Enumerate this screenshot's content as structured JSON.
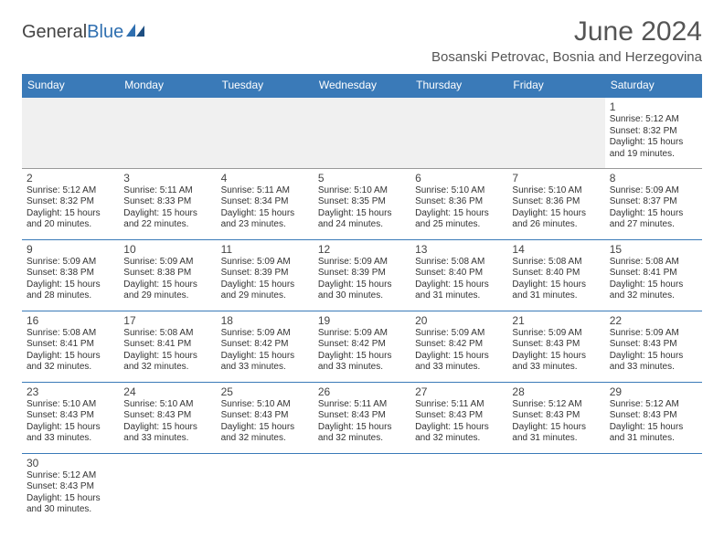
{
  "logo": {
    "dark": "General",
    "blue": "Blue"
  },
  "title": "June 2024",
  "location": "Bosanski Petrovac, Bosnia and Herzegovina",
  "colors": {
    "header_bg": "#3a7ab8",
    "header_text": "#ffffff",
    "row_border": "#3a7ab8",
    "blank_bg": "#f0f0f0",
    "text": "#333333",
    "logo_blue": "#2f6fb0"
  },
  "days": [
    "Sunday",
    "Monday",
    "Tuesday",
    "Wednesday",
    "Thursday",
    "Friday",
    "Saturday"
  ],
  "weeks": [
    [
      null,
      null,
      null,
      null,
      null,
      null,
      {
        "n": "1",
        "sr": "5:12 AM",
        "ss": "8:32 PM",
        "dl": "15 hours and 19 minutes."
      }
    ],
    [
      {
        "n": "2",
        "sr": "5:12 AM",
        "ss": "8:32 PM",
        "dl": "15 hours and 20 minutes."
      },
      {
        "n": "3",
        "sr": "5:11 AM",
        "ss": "8:33 PM",
        "dl": "15 hours and 22 minutes."
      },
      {
        "n": "4",
        "sr": "5:11 AM",
        "ss": "8:34 PM",
        "dl": "15 hours and 23 minutes."
      },
      {
        "n": "5",
        "sr": "5:10 AM",
        "ss": "8:35 PM",
        "dl": "15 hours and 24 minutes."
      },
      {
        "n": "6",
        "sr": "5:10 AM",
        "ss": "8:36 PM",
        "dl": "15 hours and 25 minutes."
      },
      {
        "n": "7",
        "sr": "5:10 AM",
        "ss": "8:36 PM",
        "dl": "15 hours and 26 minutes."
      },
      {
        "n": "8",
        "sr": "5:09 AM",
        "ss": "8:37 PM",
        "dl": "15 hours and 27 minutes."
      }
    ],
    [
      {
        "n": "9",
        "sr": "5:09 AM",
        "ss": "8:38 PM",
        "dl": "15 hours and 28 minutes."
      },
      {
        "n": "10",
        "sr": "5:09 AM",
        "ss": "8:38 PM",
        "dl": "15 hours and 29 minutes."
      },
      {
        "n": "11",
        "sr": "5:09 AM",
        "ss": "8:39 PM",
        "dl": "15 hours and 29 minutes."
      },
      {
        "n": "12",
        "sr": "5:09 AM",
        "ss": "8:39 PM",
        "dl": "15 hours and 30 minutes."
      },
      {
        "n": "13",
        "sr": "5:08 AM",
        "ss": "8:40 PM",
        "dl": "15 hours and 31 minutes."
      },
      {
        "n": "14",
        "sr": "5:08 AM",
        "ss": "8:40 PM",
        "dl": "15 hours and 31 minutes."
      },
      {
        "n": "15",
        "sr": "5:08 AM",
        "ss": "8:41 PM",
        "dl": "15 hours and 32 minutes."
      }
    ],
    [
      {
        "n": "16",
        "sr": "5:08 AM",
        "ss": "8:41 PM",
        "dl": "15 hours and 32 minutes."
      },
      {
        "n": "17",
        "sr": "5:08 AM",
        "ss": "8:41 PM",
        "dl": "15 hours and 32 minutes."
      },
      {
        "n": "18",
        "sr": "5:09 AM",
        "ss": "8:42 PM",
        "dl": "15 hours and 33 minutes."
      },
      {
        "n": "19",
        "sr": "5:09 AM",
        "ss": "8:42 PM",
        "dl": "15 hours and 33 minutes."
      },
      {
        "n": "20",
        "sr": "5:09 AM",
        "ss": "8:42 PM",
        "dl": "15 hours and 33 minutes."
      },
      {
        "n": "21",
        "sr": "5:09 AM",
        "ss": "8:43 PM",
        "dl": "15 hours and 33 minutes."
      },
      {
        "n": "22",
        "sr": "5:09 AM",
        "ss": "8:43 PM",
        "dl": "15 hours and 33 minutes."
      }
    ],
    [
      {
        "n": "23",
        "sr": "5:10 AM",
        "ss": "8:43 PM",
        "dl": "15 hours and 33 minutes."
      },
      {
        "n": "24",
        "sr": "5:10 AM",
        "ss": "8:43 PM",
        "dl": "15 hours and 33 minutes."
      },
      {
        "n": "25",
        "sr": "5:10 AM",
        "ss": "8:43 PM",
        "dl": "15 hours and 32 minutes."
      },
      {
        "n": "26",
        "sr": "5:11 AM",
        "ss": "8:43 PM",
        "dl": "15 hours and 32 minutes."
      },
      {
        "n": "27",
        "sr": "5:11 AM",
        "ss": "8:43 PM",
        "dl": "15 hours and 32 minutes."
      },
      {
        "n": "28",
        "sr": "5:12 AM",
        "ss": "8:43 PM",
        "dl": "15 hours and 31 minutes."
      },
      {
        "n": "29",
        "sr": "5:12 AM",
        "ss": "8:43 PM",
        "dl": "15 hours and 31 minutes."
      }
    ],
    [
      {
        "n": "30",
        "sr": "5:12 AM",
        "ss": "8:43 PM",
        "dl": "15 hours and 30 minutes."
      },
      null,
      null,
      null,
      null,
      null,
      null
    ]
  ],
  "labels": {
    "sunrise": "Sunrise:",
    "sunset": "Sunset:",
    "daylight": "Daylight:"
  }
}
